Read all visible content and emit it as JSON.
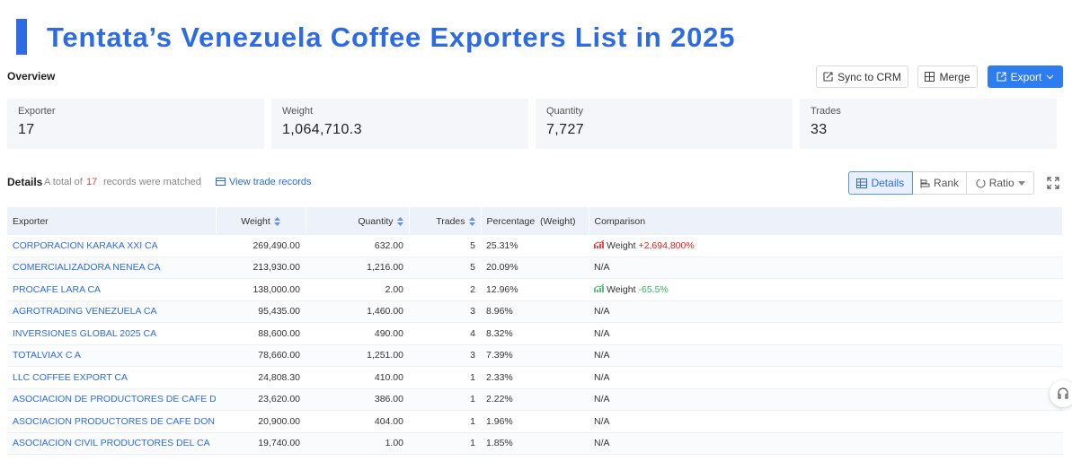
{
  "header": {
    "title": "Tentata’s Venezuela Coffee Exporters List in 2025"
  },
  "overview": {
    "label": "Overview",
    "buttons": [
      "Sync to CRM",
      "Merge",
      "Export"
    ]
  },
  "stats": [
    {
      "label": "Exporter",
      "value": "17"
    },
    {
      "label": "Weight",
      "value": "1,064,710.3"
    },
    {
      "label": "Quantity",
      "value": "7,727"
    },
    {
      "label": "Trades",
      "value": "33"
    }
  ],
  "details": {
    "label": "Details",
    "prefix": "A total of",
    "count": "17",
    "suffix": "records were matched",
    "link": "View trade records",
    "views": [
      "Details",
      "Rank",
      "Ratio"
    ]
  },
  "table": {
    "columns": [
      "Exporter",
      "Weight",
      "Quantity",
      "Trades",
      "Percentage  (Weight)",
      "Comparison"
    ],
    "rows": [
      [
        "CORPORACION KARAKA XXI CA",
        "269,490.00",
        "632.00",
        "5",
        "25.31%",
        {
          "label": "Weight",
          "value": "+2,694,800%"
        }
      ],
      [
        "COMERCIALIZADORA NENEA CA",
        "213,930.00",
        "1,216.00",
        "5",
        "20.09%",
        "N/A"
      ],
      [
        "PROCAFE LARA CA",
        "138,000.00",
        "2.00",
        "2",
        "12.96%",
        {
          "label": "Weight",
          "value": "-65.5%"
        }
      ],
      [
        "AGROTRADING VENEZUELA CA",
        "95,435.00",
        "1,460.00",
        "3",
        "8.96%",
        "N/A"
      ],
      [
        "INVERSIONES GLOBAL 2025 CA",
        "88,600.00",
        "490.00",
        "4",
        "8.32%",
        "N/A"
      ],
      [
        "TOTALVIAX C A",
        "78,660.00",
        "1,251.00",
        "3",
        "7.39%",
        "N/A"
      ],
      [
        "LLC COFFEE EXPORT CA",
        "24,808.30",
        "410.00",
        "1",
        "2.33%",
        "N/A"
      ],
      [
        "ASOCIACION DE PRODUCTORES DE CAFE D",
        "23,620.00",
        "386.00",
        "1",
        "2.22%",
        "N/A"
      ],
      [
        "ASOCIACION PRODUCTORES DE CAFE DON",
        "20,900.00",
        "404.00",
        "1",
        "1.96%",
        "N/A"
      ],
      [
        "ASOCIACION CIVIL PRODUCTORES DEL CA",
        "19,740.00",
        "1.00",
        "1",
        "1.85%",
        "N/A"
      ]
    ]
  }
}
